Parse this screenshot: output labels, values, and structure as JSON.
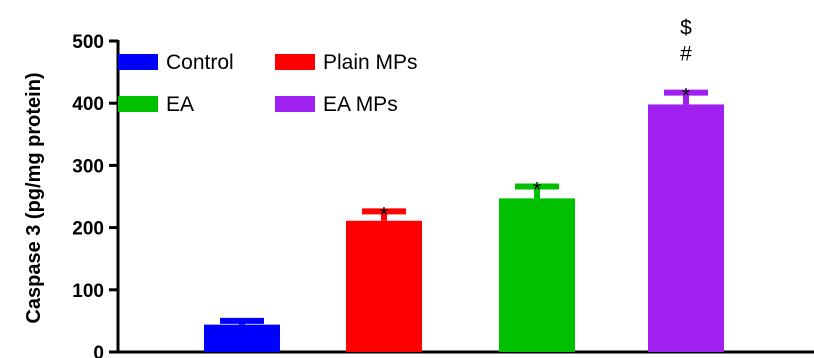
{
  "chart_data": {
    "type": "bar",
    "ylabel": "Caspase 3 (pg/mg protein)",
    "ylim": [
      0,
      500
    ],
    "yticks": [
      "0",
      "100",
      "200",
      "300",
      "400",
      "500"
    ],
    "categories": [
      "Control",
      "Plain MPs",
      "EA",
      "EA MPs"
    ],
    "values": [
      44,
      211,
      247,
      398
    ],
    "errors": [
      6,
      15,
      19,
      19
    ],
    "colors": [
      "#0000ff",
      "#ff0000",
      "#00c000",
      "#a020f0"
    ],
    "annotations": [
      [],
      [
        "*"
      ],
      [
        "*"
      ],
      [
        "*",
        "#",
        "$"
      ]
    ],
    "legend": [
      {
        "label": "Control",
        "color": "#0000ff"
      },
      {
        "label": "Plain MPs",
        "color": "#ff0000"
      },
      {
        "label": "EA",
        "color": "#00c000"
      },
      {
        "label": "EA MPs",
        "color": "#a020f0"
      }
    ],
    "legend_position": "top-left",
    "grid": false
  }
}
